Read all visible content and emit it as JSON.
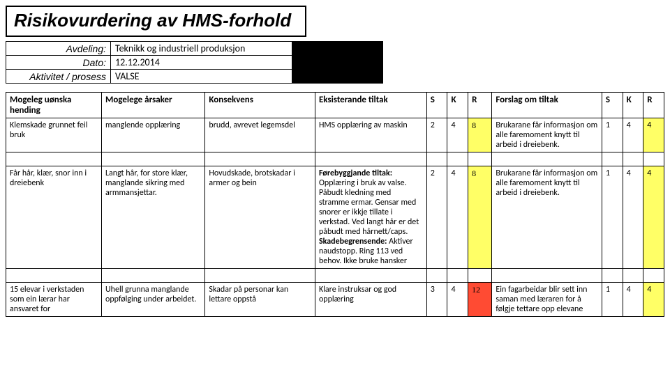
{
  "title": "Risikovurdering av HMS-forhold",
  "meta": {
    "labels": {
      "avdeling": "Avdeling:",
      "dato": "Dato:",
      "aktivitet": "Aktivitet / prosess"
    },
    "avdeling": "Teknikk og industriell produksjon",
    "dato": "12.12.2014",
    "aktivitet": "VALSE"
  },
  "headers": {
    "event": "Mogeleg uønska hending",
    "cause": "Mogelege årsaker",
    "conseq": "Konsekvens",
    "exist": "Eksisterande tiltak",
    "s1": "S",
    "k1": "K",
    "r1": "R",
    "suggest": "Forslag om tiltak",
    "s2": "S",
    "k2": "K",
    "r2": "R"
  },
  "rows": [
    {
      "event": "Klemskade grunnet feil bruk",
      "cause": "manglende opplæring",
      "conseq": "brudd, avrevet legemsdel",
      "exist": "HMS opplæring av maskin",
      "s1": "2",
      "k1": "4",
      "r1": "8",
      "r1_color": "#ffff66",
      "suggest": "Brukarane får informasjon om alle faremoment knytt til arbeid i dreiebenk.",
      "s2": "1",
      "k2": "4",
      "r2": "4",
      "r2_color": "#ffff66"
    },
    {
      "event": "Får hår, klær, snor inn i dreiebenk",
      "cause": "Langt hår, for store klær, manglande sikring med armmansjettar.",
      "conseq": "Hovudskade, brotskadar i armer og bein",
      "exist_html": "<b>Førebyggjande tiltak:</b> Opplæring i bruk av valse. Påbudt kledning med stramme ermar. Gensar med snorer er ikkje tillate i verkstad. Ved langt hår er det påbudt med hårnett/caps. <b>Skadebegrensende:</b> Aktiver naudstopp. Ring 113 ved behov. Ikke bruke hansker",
      "s1": "2",
      "k1": "4",
      "r1": "8",
      "r1_color": "#ffff66",
      "suggest": "Brukarane får informasjon om alle faremoment knytt til arbeid i dreiebenk.",
      "s2": "1",
      "k2": "4",
      "r2": "4",
      "r2_color": "#ffff66"
    },
    {
      "event": "15 elevar i verkstaden som ein lærar har ansvaret for",
      "cause": "Uhell grunna manglande oppfølging under arbeidet.",
      "conseq": "Skadar på personar kan lettare oppstå",
      "exist": "Klare instruksar og god opplæring",
      "s1": "3",
      "k1": "4",
      "r1": "12",
      "r1_color": "#ff4b33",
      "suggest": "Ein fagarbeidar blir sett inn saman med læraren for å følgje tettare opp elevane",
      "s2": "1",
      "k2": "4",
      "r2": "4",
      "r2_color": "#ffff66"
    }
  ]
}
